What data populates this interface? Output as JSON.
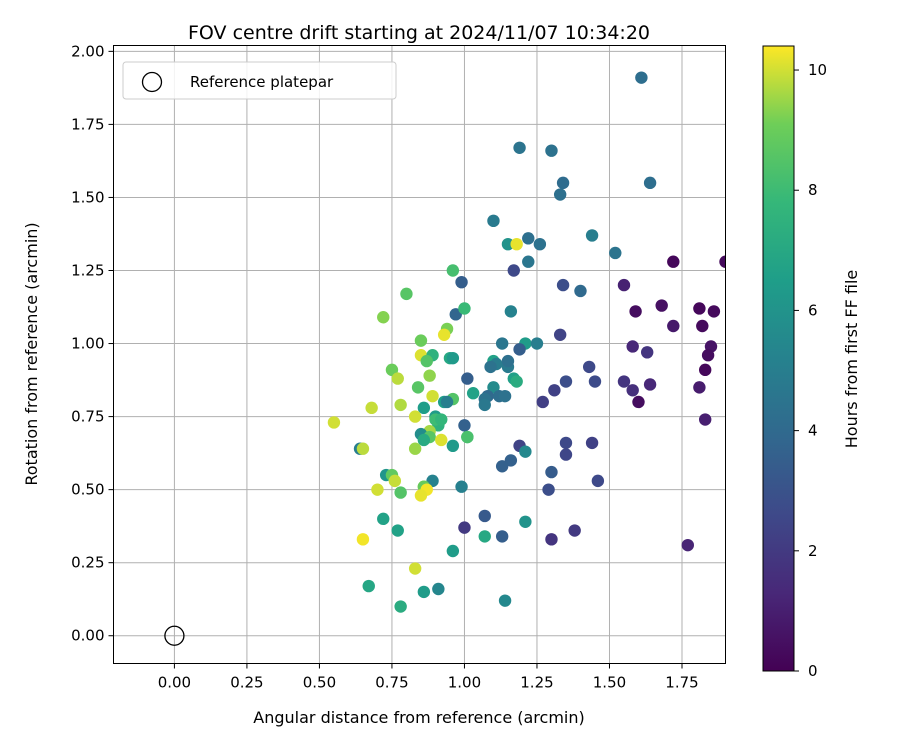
{
  "chart_data": {
    "type": "scatter",
    "title": "FOV centre drift starting at 2024/11/07 10:34:20",
    "xlabel": "Angular distance from reference (arcmin)",
    "ylabel": "Rotation from reference (arcmin)",
    "xlim": [
      -0.21,
      1.9
    ],
    "ylim": [
      -0.095,
      2.02
    ],
    "xticks": [
      "0.00",
      "0.25",
      "0.50",
      "0.75",
      "1.00",
      "1.25",
      "1.50",
      "1.75"
    ],
    "yticks": [
      "0.00",
      "0.25",
      "0.50",
      "0.75",
      "1.00",
      "1.25",
      "1.50",
      "1.75",
      "2.00"
    ],
    "xtick_values": [
      0,
      0.25,
      0.5,
      0.75,
      1.0,
      1.25,
      1.5,
      1.75
    ],
    "ytick_values": [
      0,
      0.25,
      0.5,
      0.75,
      1.0,
      1.25,
      1.5,
      1.75,
      2.0
    ],
    "grid": true,
    "legend": {
      "location": "top-left",
      "entries": [
        "Reference platepar"
      ]
    },
    "reference_point": {
      "x": 0.0,
      "y": 0.0,
      "marker": "hollow circle",
      "color": "#000000"
    },
    "colorbar": {
      "label": "Hours from first FF file",
      "min": 0,
      "max": 10.4,
      "colormap": "viridis",
      "ticks": [
        "0",
        "2",
        "4",
        "6",
        "8",
        "10"
      ],
      "tick_values": [
        0,
        2,
        4,
        6,
        8,
        10
      ]
    },
    "series": [
      {
        "points": [
          [
            1.61,
            1.91,
            4.2
          ],
          [
            1.19,
            1.67,
            4.5
          ],
          [
            1.3,
            1.66,
            4.4
          ],
          [
            1.34,
            1.55,
            4.1
          ],
          [
            1.64,
            1.55,
            4.2
          ],
          [
            1.33,
            1.51,
            4.3
          ],
          [
            1.1,
            1.42,
            4.8
          ],
          [
            1.44,
            1.37,
            5.0
          ],
          [
            1.22,
            1.36,
            4.3
          ],
          [
            1.26,
            1.34,
            4.4
          ],
          [
            1.15,
            1.34,
            6.0
          ],
          [
            1.18,
            1.34,
            10.2
          ],
          [
            1.52,
            1.31,
            4.5
          ],
          [
            1.22,
            1.28,
            4.6
          ],
          [
            1.72,
            1.28,
            0.2
          ],
          [
            1.9,
            1.28,
            0.3
          ],
          [
            1.17,
            1.25,
            2.6
          ],
          [
            0.96,
            1.25,
            8.2
          ],
          [
            0.99,
            1.21,
            3.5
          ],
          [
            1.34,
            1.2,
            2.8
          ],
          [
            1.55,
            1.2,
            1.1
          ],
          [
            1.4,
            1.18,
            4.0
          ],
          [
            0.8,
            1.17,
            8.6
          ],
          [
            0.72,
            1.09,
            9.3
          ],
          [
            1.16,
            1.11,
            5.2
          ],
          [
            1.59,
            1.11,
            0.4
          ],
          [
            1.68,
            1.13,
            0.5
          ],
          [
            1.81,
            1.12,
            0.2
          ],
          [
            1.86,
            1.11,
            0.3
          ],
          [
            0.97,
            1.1,
            3.8
          ],
          [
            1.0,
            1.12,
            7.9
          ],
          [
            1.72,
            1.06,
            0.8
          ],
          [
            1.82,
            1.06,
            0.3
          ],
          [
            0.94,
            1.05,
            9.2
          ],
          [
            0.93,
            1.03,
            10.2
          ],
          [
            1.33,
            1.03,
            2.4
          ],
          [
            0.85,
            1.01,
            9.0
          ],
          [
            1.13,
            1.0,
            4.6
          ],
          [
            1.21,
            1.0,
            6.4
          ],
          [
            1.25,
            1.0,
            5.0
          ],
          [
            1.19,
            0.98,
            3.5
          ],
          [
            1.58,
            0.99,
            1.3
          ],
          [
            1.63,
            0.97,
            1.8
          ],
          [
            1.85,
            0.99,
            0.6
          ],
          [
            1.84,
            0.96,
            0.4
          ],
          [
            0.85,
            0.96,
            10.1
          ],
          [
            0.89,
            0.96,
            7.5
          ],
          [
            0.95,
            0.95,
            7.0
          ],
          [
            0.96,
            0.95,
            6.3
          ],
          [
            1.1,
            0.94,
            6.7
          ],
          [
            1.11,
            0.93,
            4.9
          ],
          [
            1.09,
            0.92,
            4.4
          ],
          [
            1.15,
            0.92,
            4.8
          ],
          [
            1.15,
            0.94,
            4.3
          ],
          [
            0.87,
            0.94,
            8.5
          ],
          [
            1.43,
            0.92,
            2.6
          ],
          [
            1.83,
            0.91,
            0.2
          ],
          [
            0.75,
            0.91,
            9.0
          ],
          [
            0.77,
            0.88,
            9.8
          ],
          [
            0.88,
            0.89,
            9.4
          ],
          [
            1.01,
            0.88,
            3.5
          ],
          [
            1.17,
            0.88,
            6.6
          ],
          [
            1.18,
            0.87,
            7.2
          ],
          [
            1.35,
            0.87,
            2.8
          ],
          [
            1.45,
            0.87,
            2.7
          ],
          [
            1.55,
            0.87,
            1.8
          ],
          [
            1.64,
            0.86,
            1.3
          ],
          [
            1.58,
            0.84,
            1.6
          ],
          [
            1.31,
            0.84,
            2.3
          ],
          [
            1.1,
            0.85,
            5.6
          ],
          [
            0.84,
            0.85,
            8.6
          ],
          [
            1.81,
            0.85,
            0.9
          ],
          [
            1.6,
            0.8,
            0.4
          ],
          [
            1.08,
            0.82,
            4.0
          ],
          [
            1.07,
            0.81,
            4.4
          ],
          [
            1.12,
            0.82,
            4.2
          ],
          [
            1.14,
            0.82,
            4.4
          ],
          [
            1.03,
            0.83,
            6.7
          ],
          [
            0.93,
            0.8,
            6.5
          ],
          [
            0.96,
            0.81,
            8.5
          ],
          [
            0.89,
            0.82,
            10.0
          ],
          [
            0.94,
            0.8,
            5.0
          ],
          [
            1.27,
            0.8,
            2.2
          ],
          [
            0.78,
            0.79,
            9.7
          ],
          [
            0.86,
            0.78,
            6.5
          ],
          [
            1.07,
            0.79,
            4.7
          ],
          [
            0.68,
            0.78,
            9.9
          ],
          [
            0.9,
            0.75,
            6.4
          ],
          [
            0.83,
            0.75,
            10.0
          ],
          [
            0.91,
            0.72,
            7.5
          ],
          [
            0.9,
            0.74,
            8.0
          ],
          [
            0.92,
            0.74,
            7.7
          ],
          [
            0.55,
            0.73,
            10.0
          ],
          [
            1.0,
            0.72,
            3.6
          ],
          [
            1.83,
            0.74,
            1.0
          ],
          [
            0.88,
            0.7,
            9.6
          ],
          [
            0.85,
            0.69,
            5.7
          ],
          [
            0.88,
            0.68,
            8.6
          ],
          [
            0.86,
            0.67,
            7.1
          ],
          [
            0.92,
            0.67,
            10.1
          ],
          [
            1.01,
            0.68,
            7.6
          ],
          [
            1.01,
            0.68,
            8.3
          ],
          [
            0.96,
            0.65,
            6.3
          ],
          [
            0.64,
            0.64,
            5.0
          ],
          [
            0.65,
            0.64,
            9.8
          ],
          [
            1.35,
            0.66,
            2.6
          ],
          [
            1.44,
            0.66,
            2.3
          ],
          [
            1.19,
            0.65,
            2.4
          ],
          [
            0.83,
            0.64,
            9.5
          ],
          [
            1.21,
            0.63,
            5.5
          ],
          [
            1.35,
            0.62,
            2.5
          ],
          [
            1.16,
            0.6,
            3.6
          ],
          [
            1.13,
            0.58,
            3.6
          ],
          [
            1.3,
            0.56,
            3.4
          ],
          [
            1.46,
            0.53,
            2.6
          ],
          [
            0.73,
            0.55,
            6.1
          ],
          [
            0.75,
            0.55,
            8.8
          ],
          [
            0.76,
            0.53,
            9.9
          ],
          [
            0.89,
            0.53,
            5.2
          ],
          [
            0.7,
            0.5,
            10.0
          ],
          [
            0.78,
            0.49,
            8.5
          ],
          [
            0.86,
            0.51,
            9.7
          ],
          [
            0.86,
            0.51,
            8.9
          ],
          [
            0.87,
            0.5,
            10.3
          ],
          [
            0.85,
            0.48,
            10.2
          ],
          [
            0.99,
            0.51,
            5.1
          ],
          [
            1.29,
            0.5,
            2.8
          ],
          [
            0.72,
            0.4,
            6.7
          ],
          [
            1.07,
            0.41,
            3.3
          ],
          [
            1.21,
            0.39,
            6.0
          ],
          [
            1.0,
            0.37,
            2.0
          ],
          [
            1.38,
            0.36,
            2.0
          ],
          [
            0.77,
            0.36,
            6.7
          ],
          [
            1.13,
            0.34,
            3.5
          ],
          [
            1.3,
            0.33,
            1.8
          ],
          [
            1.07,
            0.34,
            7.0
          ],
          [
            0.96,
            0.29,
            6.4
          ],
          [
            0.65,
            0.33,
            10.3
          ],
          [
            0.83,
            0.23,
            10.0
          ],
          [
            1.77,
            0.31,
            1.2
          ],
          [
            0.67,
            0.17,
            6.9
          ],
          [
            0.86,
            0.15,
            6.4
          ],
          [
            0.91,
            0.16,
            5.4
          ],
          [
            1.14,
            0.12,
            5.5
          ],
          [
            0.78,
            0.1,
            7.2
          ]
        ]
      }
    ]
  }
}
